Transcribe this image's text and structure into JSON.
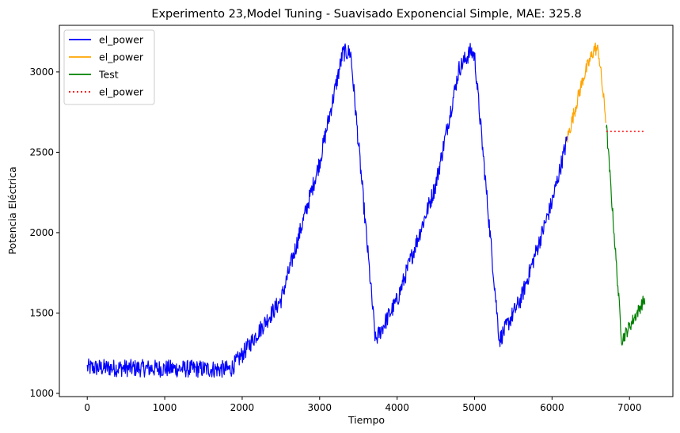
{
  "chart_data": {
    "type": "line",
    "title": "Experimento 23,Model Tuning - Suavisado Exponencial Simple, MAE: 325.8",
    "xlabel": "Tiempo",
    "ylabel": "Potencia Eléctrica",
    "xlim": [
      -360,
      7560
    ],
    "ylim": [
      980,
      3290
    ],
    "x_ticks": [
      0,
      1000,
      2000,
      3000,
      4000,
      5000,
      6000,
      7000
    ],
    "y_ticks": [
      1000,
      1500,
      2000,
      2500,
      3000
    ],
    "legend_position": "upper-left",
    "series": [
      {
        "name": "el_power",
        "color": "#0000ff",
        "style": "solid",
        "noise": 55,
        "x": [
          0,
          1800,
          1850,
          2000,
          2500,
          3000,
          3300,
          3400,
          3720,
          4000,
          4500,
          4800,
          4950,
          5000,
          5320,
          5600,
          6000,
          6200
        ],
        "y": [
          1160,
          1150,
          1150,
          1240,
          1580,
          2440,
          3120,
          3120,
          1330,
          1580,
          2300,
          3020,
          3130,
          3100,
          1330,
          1590,
          2190,
          2590
        ]
      },
      {
        "name": "el_power",
        "color": "#ffa500",
        "style": "solid",
        "noise": 45,
        "x": [
          6200,
          6400,
          6550,
          6600,
          6700
        ],
        "y": [
          2590,
          2960,
          3150,
          3130,
          2680
        ]
      },
      {
        "name": "Test",
        "color": "#008000",
        "style": "solid",
        "noise": 40,
        "x": [
          6700,
          6900,
          7200
        ],
        "y": [
          2680,
          1330,
          1590
        ]
      },
      {
        "name": "el_power",
        "color": "#ff0000",
        "style": "dotted",
        "noise": 0,
        "x": [
          6700,
          7200
        ],
        "y": [
          2630,
          2630
        ]
      }
    ]
  }
}
